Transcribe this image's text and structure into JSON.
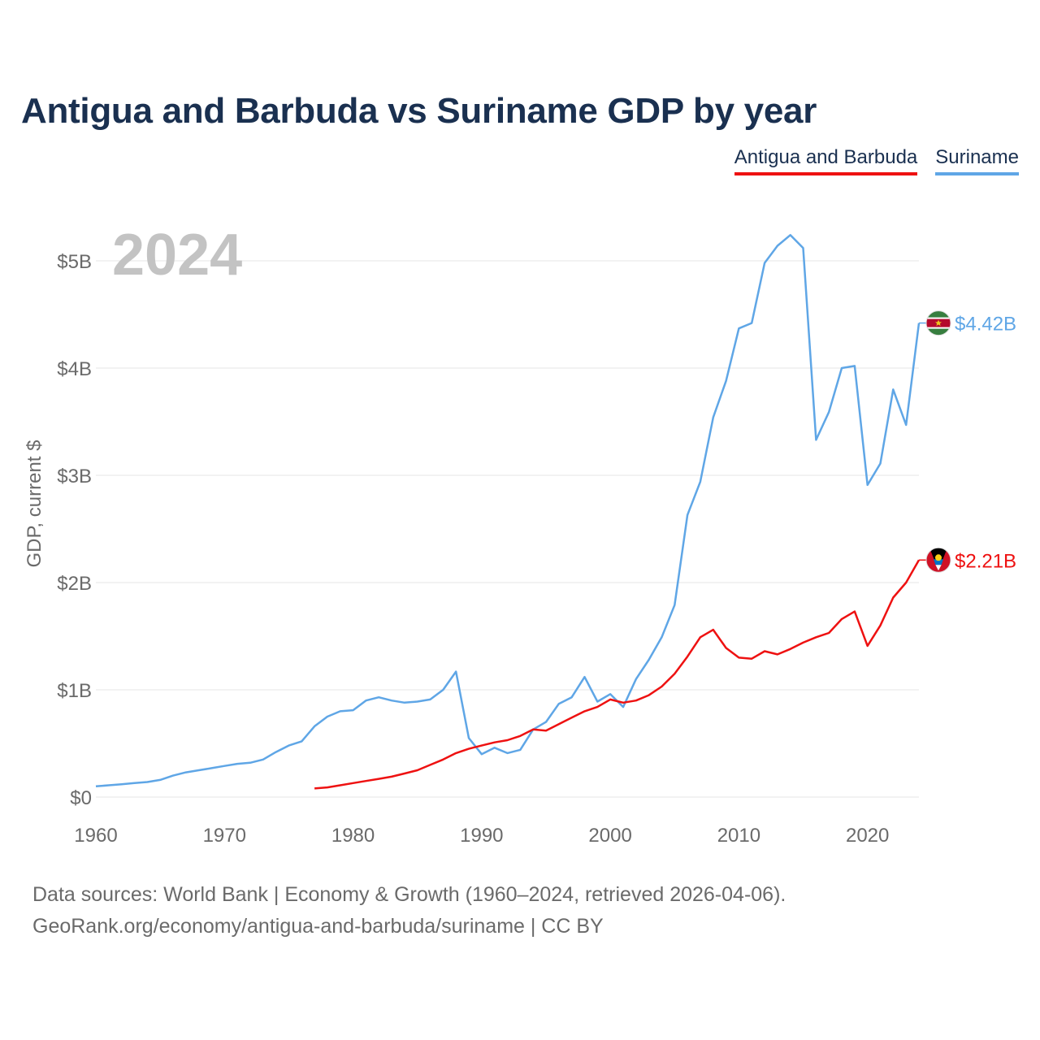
{
  "title": "Antigua and Barbuda vs Suriname GDP by year",
  "year_overlay": "2024",
  "legend": [
    "Antigua and Barbuda",
    "Suriname"
  ],
  "source_line1": "Data sources: World Bank | Economy & Growth (1960–2024, retrieved 2026-04-06).",
  "source_line2": "GeoRank.org/economy/antigua-and-barbuda/suriname | CC BY",
  "chart_data": {
    "type": "line",
    "title": "Antigua and Barbuda vs Suriname GDP by year",
    "xlabel": "",
    "ylabel": "GDP, current $",
    "xlim": [
      1960,
      2024
    ],
    "ylim": [
      0,
      5000000000
    ],
    "x_ticks": [
      1960,
      1970,
      1980,
      1990,
      2000,
      2010,
      2020
    ],
    "x_tick_labels": [
      "1960",
      "1970",
      "1980",
      "1990",
      "2000",
      "2010",
      "2020"
    ],
    "y_ticks": [
      0,
      1000000000,
      2000000000,
      3000000000,
      4000000000,
      5000000000
    ],
    "y_tick_labels": [
      "$0",
      "$1B",
      "$2B",
      "$3B",
      "$4B",
      "$5B"
    ],
    "grid": true,
    "legend_position": "top-right",
    "series": [
      {
        "name": "Suriname",
        "color": "#5fa6e6",
        "end_label": "$4.42B",
        "flag_icon": "suriname-flag-icon",
        "x": [
          1960,
          1961,
          1962,
          1963,
          1964,
          1965,
          1966,
          1967,
          1968,
          1969,
          1970,
          1971,
          1972,
          1973,
          1974,
          1975,
          1976,
          1977,
          1978,
          1979,
          1980,
          1981,
          1982,
          1983,
          1984,
          1985,
          1986,
          1987,
          1988,
          1989,
          1990,
          1991,
          1992,
          1993,
          1994,
          1995,
          1996,
          1997,
          1998,
          1999,
          2000,
          2001,
          2002,
          2003,
          2004,
          2005,
          2006,
          2007,
          2008,
          2009,
          2010,
          2011,
          2012,
          2013,
          2014,
          2015,
          2016,
          2017,
          2018,
          2019,
          2020,
          2021,
          2022,
          2023,
          2024
        ],
        "values": [
          0.1,
          0.11,
          0.12,
          0.13,
          0.14,
          0.16,
          0.2,
          0.23,
          0.25,
          0.27,
          0.29,
          0.31,
          0.32,
          0.35,
          0.42,
          0.48,
          0.52,
          0.66,
          0.75,
          0.8,
          0.81,
          0.9,
          0.93,
          0.9,
          0.88,
          0.89,
          0.91,
          1.0,
          1.17,
          0.55,
          0.4,
          0.46,
          0.41,
          0.44,
          0.63,
          0.7,
          0.87,
          0.93,
          1.12,
          0.89,
          0.96,
          0.84,
          1.1,
          1.28,
          1.49,
          1.79,
          2.63,
          2.94,
          3.54,
          3.88,
          4.37,
          4.42,
          4.98,
          5.14,
          5.24,
          5.12,
          3.33,
          3.59,
          4.0,
          4.02,
          2.91,
          3.11,
          3.8,
          3.47,
          4.42
        ]
      },
      {
        "name": "Antigua and Barbuda",
        "color": "#ee1111",
        "end_label": "$2.21B",
        "flag_icon": "antigua-flag-icon",
        "x": [
          1977,
          1978,
          1979,
          1980,
          1981,
          1982,
          1983,
          1984,
          1985,
          1986,
          1987,
          1988,
          1989,
          1990,
          1991,
          1992,
          1993,
          1994,
          1995,
          1996,
          1997,
          1998,
          1999,
          2000,
          2001,
          2002,
          2003,
          2004,
          2005,
          2006,
          2007,
          2008,
          2009,
          2010,
          2011,
          2012,
          2013,
          2014,
          2015,
          2016,
          2017,
          2018,
          2019,
          2020,
          2021,
          2022,
          2023,
          2024
        ],
        "values": [
          0.08,
          0.09,
          0.11,
          0.13,
          0.15,
          0.17,
          0.19,
          0.22,
          0.25,
          0.3,
          0.35,
          0.41,
          0.45,
          0.48,
          0.51,
          0.53,
          0.57,
          0.63,
          0.62,
          0.68,
          0.74,
          0.8,
          0.84,
          0.91,
          0.88,
          0.9,
          0.95,
          1.03,
          1.15,
          1.31,
          1.49,
          1.56,
          1.39,
          1.3,
          1.29,
          1.36,
          1.33,
          1.38,
          1.44,
          1.49,
          1.53,
          1.66,
          1.73,
          1.41,
          1.6,
          1.86,
          2.0,
          2.21
        ]
      }
    ]
  }
}
